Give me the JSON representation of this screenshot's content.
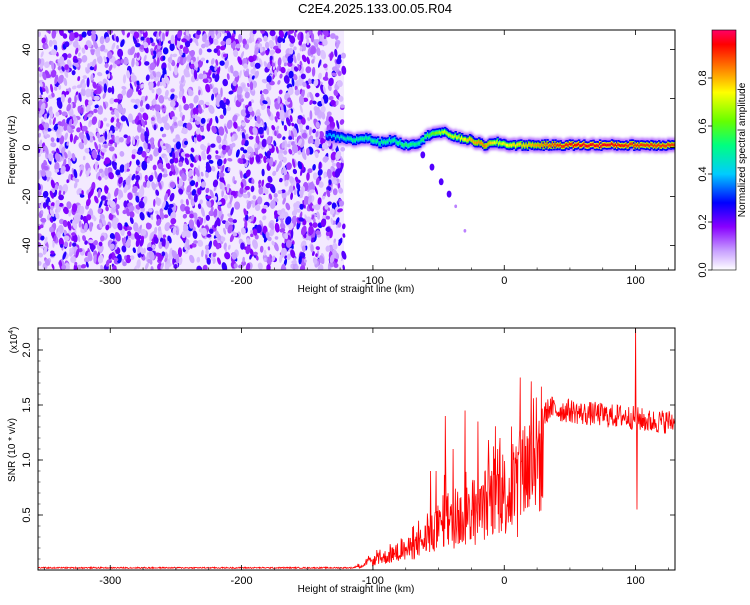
{
  "title": "C2E4.2025.133.00.05.R04",
  "chart_data": [
    {
      "type": "heatmap",
      "xlabel": "Height of straight line (km)",
      "ylabel": "Frequency (Hz)",
      "xlim": [
        -355,
        130
      ],
      "ylim": [
        -50,
        48
      ],
      "xticks": [
        -300,
        -200,
        -100,
        0,
        100
      ],
      "yticks": [
        -40,
        -20,
        0,
        20,
        40
      ],
      "noise_region_x": [
        -355,
        -122
      ],
      "ridge": {
        "x": [
          -135,
          -125,
          -115,
          -105,
          -95,
          -85,
          -75,
          -65,
          -55,
          -45,
          -35,
          -25,
          -15,
          -5,
          5,
          20,
          40,
          60,
          80,
          100,
          130
        ],
        "y": [
          5,
          4,
          3,
          4,
          2,
          3,
          1,
          2,
          6,
          6,
          4,
          3,
          1,
          2,
          1,
          1,
          1,
          1,
          1,
          1,
          1
        ],
        "amplitude": [
          0.35,
          0.45,
          0.5,
          0.5,
          0.5,
          0.5,
          0.55,
          0.5,
          0.6,
          0.7,
          0.7,
          0.8,
          0.85,
          0.7,
          0.75,
          0.8,
          0.9,
          0.95,
          0.95,
          0.9,
          0.9
        ]
      },
      "secondary_branch": {
        "x": [
          -62,
          -55,
          -48,
          -42,
          -37,
          -30
        ],
        "y": [
          -3,
          -8,
          -14,
          -19,
          -24,
          -34
        ]
      },
      "colorbar": {
        "label": "Normalized spectral amplitude",
        "ticks": [
          "0.0",
          "0.2",
          "0.4",
          "0.6",
          "0.8"
        ],
        "range": [
          0,
          1
        ],
        "colors": [
          "#ffffff",
          "#8800ff",
          "#0000ff",
          "#00ffff",
          "#00ff00",
          "#ffff00",
          "#ff0000",
          "#ff0066"
        ]
      }
    },
    {
      "type": "line",
      "xlabel": "Height of straight line (km)",
      "ylabel": "SNR (10 * v/v)",
      "multiplier_label": "(x10",
      "multiplier_exp": "4",
      "multiplier_close": ")",
      "xlim": [
        -355,
        130
      ],
      "ylim": [
        0,
        2.2
      ],
      "xticks": [
        -300,
        -200,
        -100,
        0,
        100
      ],
      "yticks": [
        0.5,
        1.0,
        1.5,
        2.0
      ],
      "ytick_labels": [
        "0.5",
        "1.0",
        "1.5",
        "2.0"
      ],
      "color": "#ff0000",
      "x": [
        -355,
        -300,
        -200,
        -115,
        -100,
        -90,
        -80,
        -70,
        -60,
        -50,
        -45,
        -40,
        -35,
        -30,
        -25,
        -20,
        -15,
        -10,
        -5,
        0,
        5,
        10,
        15,
        20,
        25,
        30,
        35,
        40,
        50,
        60,
        70,
        80,
        90,
        100,
        110,
        120,
        130
      ],
      "y": [
        0.02,
        0.02,
        0.02,
        0.02,
        0.1,
        0.15,
        0.2,
        0.25,
        0.35,
        0.45,
        0.6,
        0.5,
        0.55,
        0.6,
        0.65,
        0.55,
        0.75,
        0.8,
        0.9,
        0.85,
        0.9,
        0.95,
        1.15,
        1.2,
        1.3,
        1.4,
        1.48,
        1.45,
        1.45,
        1.42,
        1.42,
        1.4,
        1.4,
        1.38,
        1.35,
        1.35,
        1.35
      ],
      "peaks": [
        {
          "x": -56,
          "y": 0.9
        },
        {
          "x": -52,
          "y": 0.9
        },
        {
          "x": -45,
          "y": 1.4
        },
        {
          "x": -39,
          "y": 1.1
        },
        {
          "x": -30,
          "y": 1.45
        },
        {
          "x": -20,
          "y": 1.35
        },
        {
          "x": -5,
          "y": 1.1
        },
        {
          "x": 12,
          "y": 1.75
        },
        {
          "x": 10,
          "y": 0.3
        },
        {
          "x": 100,
          "y": 2.25
        },
        {
          "x": 101,
          "y": 0.55
        }
      ]
    }
  ]
}
